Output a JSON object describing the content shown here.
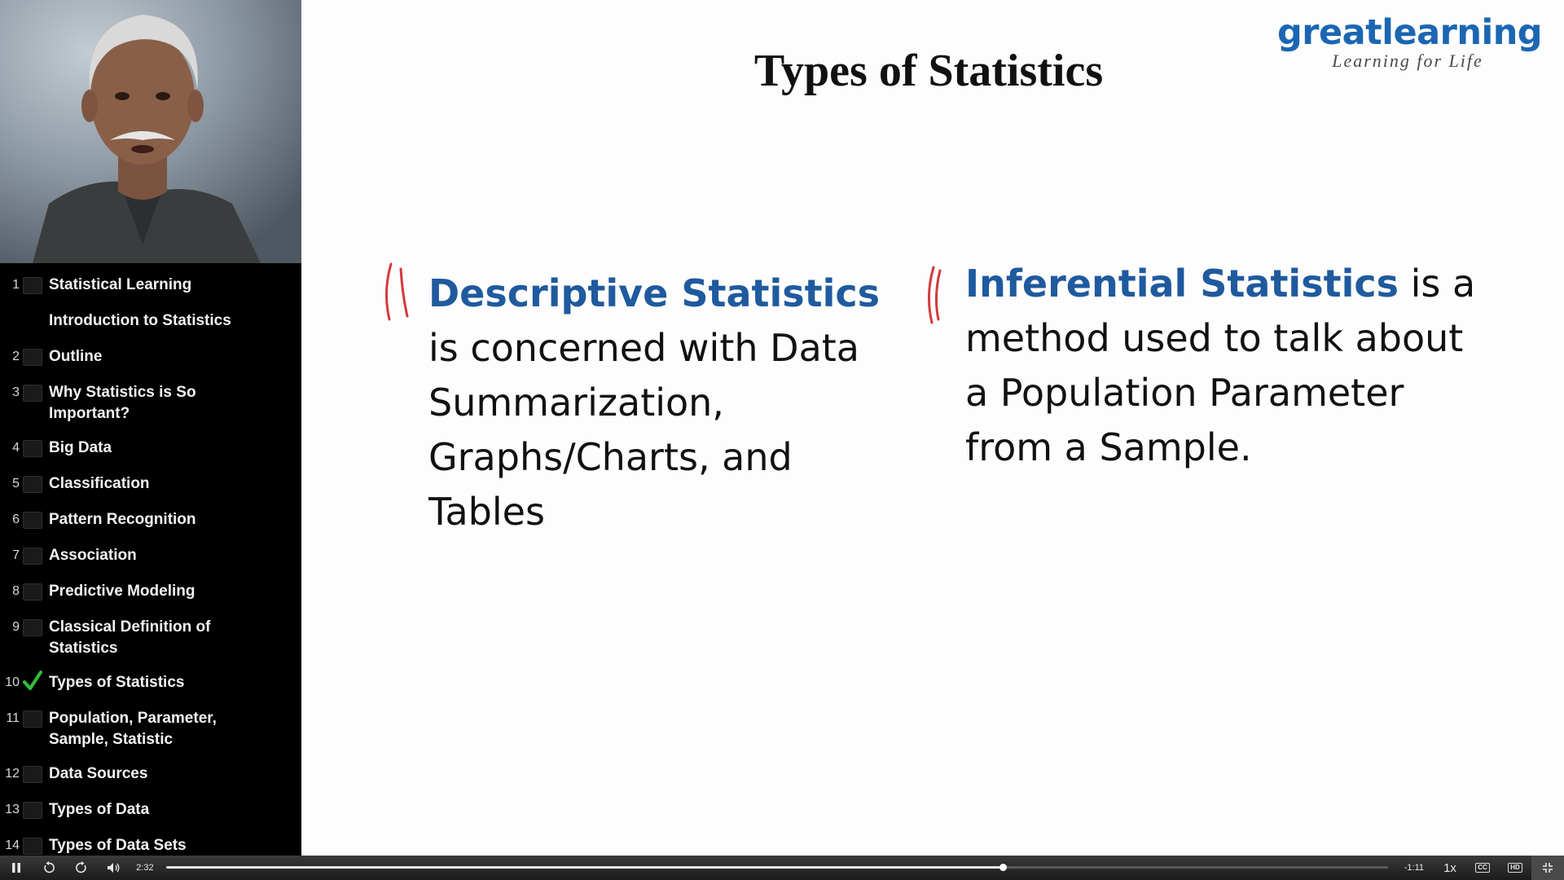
{
  "slide": {
    "title": "Types of Statistics",
    "logo": {
      "word": "greatlearning",
      "tagline": "Learning for Life"
    },
    "left": {
      "term": "Descriptive Statistics",
      "rest": "is concerned with Data Summarization, Graphs/Charts, and Tables"
    },
    "right": {
      "term": "Inferential Statistics",
      "rest": "is a method used to talk about a Population Parameter from a Sample."
    }
  },
  "chapters": [
    {
      "num": "1",
      "label": "Statistical Learning",
      "state": "unchecked"
    },
    {
      "num": "",
      "label": "Introduction to Statistics",
      "state": "none"
    },
    {
      "num": "2",
      "label": "Outline",
      "state": "unchecked"
    },
    {
      "num": "3",
      "label": "Why Statistics is So Important?",
      "state": "unchecked"
    },
    {
      "num": "4",
      "label": "Big Data",
      "state": "unchecked"
    },
    {
      "num": "5",
      "label": "Classification",
      "state": "unchecked"
    },
    {
      "num": "6",
      "label": "Pattern Recognition",
      "state": "unchecked"
    },
    {
      "num": "7",
      "label": "Association",
      "state": "unchecked"
    },
    {
      "num": "8",
      "label": "Predictive Modeling",
      "state": "unchecked"
    },
    {
      "num": "9",
      "label": "Classical Definition of Statistics",
      "state": "unchecked"
    },
    {
      "num": "10",
      "label": "Types of Statistics",
      "state": "checked"
    },
    {
      "num": "11",
      "label": "Population, Parameter, Sample, Statistic",
      "state": "unchecked"
    },
    {
      "num": "12",
      "label": "Data Sources",
      "state": "unchecked"
    },
    {
      "num": "13",
      "label": "Types of Data",
      "state": "unchecked"
    },
    {
      "num": "14",
      "label": "Types of Data Sets",
      "state": "unchecked"
    }
  ],
  "player": {
    "current_time": "2:32",
    "remaining_time": "-1:11",
    "speed": "1x",
    "progress": 0.685,
    "cc_label": "CC",
    "hd_label": "HD"
  },
  "colors": {
    "term_blue": "#1f5a9e",
    "logo_blue": "#1b66b3",
    "check_green": "#2fbf3a",
    "ink_red": "#d23a3a"
  }
}
